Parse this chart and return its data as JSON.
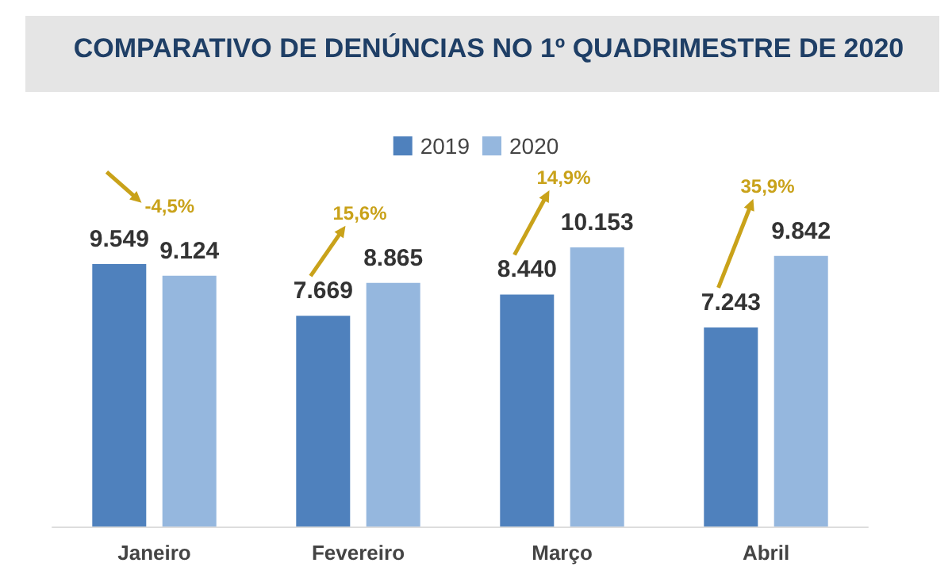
{
  "chart_data": {
    "type": "bar",
    "title": "COMPARATIVO DE DENÚNCIAS NO 1º QUADRIMESTRE DE 2020",
    "categories": [
      "Janeiro",
      "Fevereiro",
      "Março",
      "Abril"
    ],
    "series": [
      {
        "name": "2019",
        "color": "#4f81bd",
        "values": [
          9549,
          7669,
          8440,
          7243
        ],
        "value_labels": [
          "9.549",
          "7.669",
          "8.440",
          "7.243"
        ]
      },
      {
        "name": "2020",
        "color": "#95b7de",
        "values": [
          9124,
          8865,
          10153,
          9842
        ],
        "value_labels": [
          "9.124",
          "8.865",
          "10.153",
          "9.842"
        ]
      }
    ],
    "annotations": [
      "-4,5%",
      "15,6%",
      "14,9%",
      "35,9%"
    ],
    "grid": false,
    "legend": "top"
  }
}
